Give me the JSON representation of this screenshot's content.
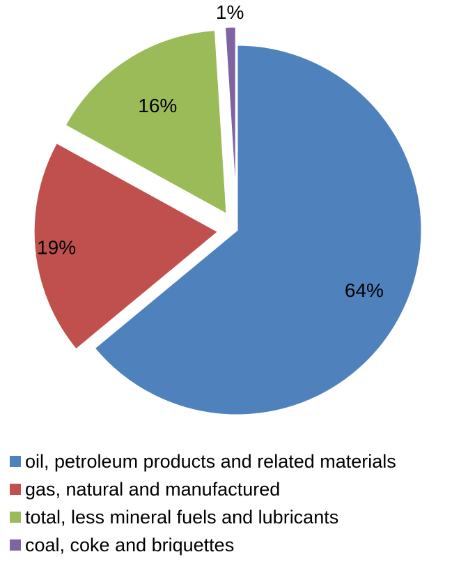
{
  "chart_data": {
    "type": "pie",
    "title": "",
    "slices": [
      {
        "name": "oil, petroleum products and related materials",
        "value": 64,
        "label": "64%",
        "color": "#4F81BD"
      },
      {
        "name": "gas, natural and manufactured",
        "value": 19,
        "label": "19%",
        "color": "#C0504D"
      },
      {
        "name": "total, less mineral fuels and lubricants",
        "value": 16,
        "label": "16%",
        "color": "#9BBB59"
      },
      {
        "name": "coal, coke and briquettes",
        "value": 1,
        "label": "1%",
        "color": "#8064A2"
      }
    ],
    "start_angle_deg": 0,
    "direction": "clockwise",
    "exploded": true,
    "legend_position": "bottom"
  }
}
